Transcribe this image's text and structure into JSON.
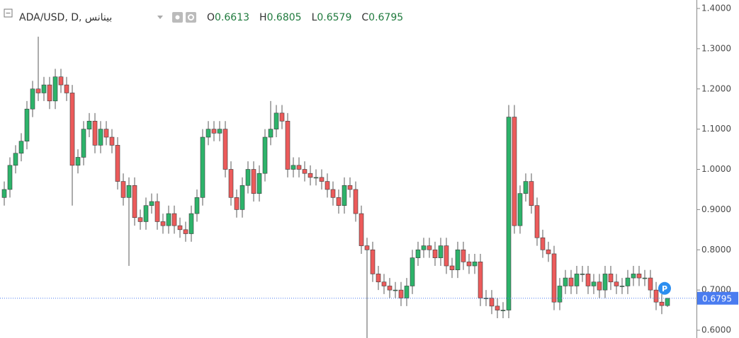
{
  "chart_data": {
    "type": "candlestick",
    "title": "ADA/USD, D, بينانس",
    "ohlc_legend": [
      {
        "label": "O",
        "value": 0.6613
      },
      {
        "label": "H",
        "value": 0.6805
      },
      {
        "label": "L",
        "value": 0.6579
      },
      {
        "label": "C",
        "value": 0.6795
      }
    ],
    "open": [
      0.93,
      0.95,
      1.01,
      1.04,
      1.07,
      1.15,
      1.2,
      1.19,
      1.21,
      1.17,
      1.23,
      1.21,
      1.19,
      1.01,
      1.03,
      1.1,
      1.12,
      1.06,
      1.1,
      1.08,
      1.06,
      0.97,
      0.93,
      0.96,
      0.88,
      0.87,
      0.91,
      0.92,
      0.87,
      0.86,
      0.89,
      0.86,
      0.85,
      0.84,
      0.89,
      0.93,
      1.08,
      1.1,
      1.09,
      1.1,
      1.0,
      0.93,
      0.9,
      0.96,
      1.0,
      0.94,
      0.99,
      1.08,
      1.1,
      1.14,
      1.12,
      1.0,
      1.01,
      1.0,
      0.99,
      0.98,
      0.98,
      0.97,
      0.95,
      0.93,
      0.91,
      0.96,
      0.95,
      0.89,
      0.81,
      0.8,
      0.74,
      0.72,
      0.71,
      0.7,
      0.7,
      0.68,
      0.71,
      0.78,
      0.8,
      0.81,
      0.8,
      0.78,
      0.81,
      0.76,
      0.75,
      0.8,
      0.77,
      0.76,
      0.77,
      0.68,
      0.68,
      0.66,
      0.65,
      0.65,
      1.13,
      0.86,
      0.94,
      0.97,
      0.91,
      0.83,
      0.8,
      0.79,
      0.67,
      0.71,
      0.73,
      0.71,
      0.74,
      0.74,
      0.71,
      0.72,
      0.7,
      0.74,
      0.72,
      0.71,
      0.71,
      0.73,
      0.74,
      0.73,
      0.73,
      0.7,
      0.67,
      0.6613
    ],
    "high": [
      0.97,
      1.03,
      1.06,
      1.09,
      1.17,
      1.22,
      1.33,
      1.23,
      1.23,
      1.25,
      1.25,
      1.23,
      1.21,
      1.05,
      1.12,
      1.14,
      1.14,
      1.12,
      1.12,
      1.1,
      1.08,
      0.99,
      0.98,
      0.98,
      0.9,
      0.93,
      0.94,
      0.94,
      0.89,
      0.91,
      0.91,
      0.88,
      0.87,
      0.91,
      0.95,
      1.1,
      1.12,
      1.12,
      1.12,
      1.12,
      1.02,
      0.95,
      0.98,
      1.02,
      1.02,
      1.01,
      1.1,
      1.17,
      1.16,
      1.16,
      1.14,
      1.03,
      1.03,
      1.02,
      1.01,
      1.0,
      1.0,
      0.99,
      0.97,
      0.95,
      0.98,
      0.98,
      0.97,
      0.91,
      0.83,
      0.82,
      0.76,
      0.74,
      0.73,
      0.72,
      0.72,
      0.73,
      0.8,
      0.82,
      0.83,
      0.83,
      0.82,
      0.83,
      0.83,
      0.78,
      0.82,
      0.82,
      0.79,
      0.79,
      0.79,
      0.7,
      0.7,
      0.68,
      0.67,
      1.16,
      1.16,
      0.96,
      0.99,
      0.99,
      0.93,
      0.85,
      0.82,
      0.81,
      0.73,
      0.75,
      0.75,
      0.76,
      0.76,
      0.76,
      0.74,
      0.74,
      0.76,
      0.76,
      0.74,
      0.73,
      0.75,
      0.76,
      0.76,
      0.75,
      0.75,
      0.72,
      0.69,
      0.6805
    ],
    "low": [
      0.91,
      0.93,
      0.99,
      1.02,
      1.05,
      1.13,
      1.17,
      1.17,
      1.15,
      1.15,
      1.19,
      1.17,
      0.91,
      0.99,
      1.01,
      1.08,
      1.04,
      1.04,
      1.06,
      1.04,
      0.95,
      0.91,
      0.76,
      0.86,
      0.85,
      0.85,
      0.89,
      0.85,
      0.84,
      0.84,
      0.84,
      0.83,
      0.82,
      0.82,
      0.87,
      0.91,
      1.06,
      1.07,
      1.07,
      0.98,
      0.91,
      0.88,
      0.88,
      0.94,
      0.92,
      0.92,
      0.97,
      1.06,
      1.08,
      1.1,
      0.98,
      0.98,
      0.98,
      0.97,
      0.96,
      0.96,
      0.95,
      0.93,
      0.91,
      0.89,
      0.89,
      0.93,
      0.87,
      0.79,
      0.58,
      0.72,
      0.7,
      0.69,
      0.68,
      0.68,
      0.66,
      0.66,
      0.69,
      0.76,
      0.78,
      0.78,
      0.76,
      0.76,
      0.74,
      0.73,
      0.73,
      0.75,
      0.74,
      0.74,
      0.66,
      0.66,
      0.64,
      0.63,
      0.63,
      0.63,
      0.84,
      0.84,
      0.92,
      0.89,
      0.81,
      0.78,
      0.77,
      0.65,
      0.65,
      0.69,
      0.69,
      0.69,
      0.72,
      0.69,
      0.69,
      0.68,
      0.68,
      0.7,
      0.69,
      0.69,
      0.69,
      0.71,
      0.71,
      0.71,
      0.68,
      0.65,
      0.64,
      0.6579
    ],
    "close": [
      0.95,
      1.01,
      1.04,
      1.07,
      1.15,
      1.2,
      1.19,
      1.21,
      1.17,
      1.23,
      1.21,
      1.19,
      1.01,
      1.03,
      1.1,
      1.12,
      1.06,
      1.1,
      1.08,
      1.06,
      0.97,
      0.93,
      0.96,
      0.88,
      0.87,
      0.91,
      0.92,
      0.87,
      0.86,
      0.89,
      0.86,
      0.85,
      0.84,
      0.89,
      0.93,
      1.08,
      1.1,
      1.09,
      1.1,
      1.0,
      0.93,
      0.9,
      0.96,
      1.0,
      0.94,
      0.99,
      1.08,
      1.1,
      1.14,
      1.12,
      1.0,
      1.01,
      1.0,
      0.99,
      0.98,
      0.98,
      0.97,
      0.95,
      0.93,
      0.91,
      0.96,
      0.95,
      0.89,
      0.81,
      0.8,
      0.74,
      0.72,
      0.71,
      0.7,
      0.7,
      0.68,
      0.71,
      0.78,
      0.8,
      0.81,
      0.8,
      0.78,
      0.81,
      0.76,
      0.75,
      0.8,
      0.77,
      0.76,
      0.77,
      0.68,
      0.68,
      0.66,
      0.65,
      0.65,
      1.13,
      0.86,
      0.94,
      0.97,
      0.91,
      0.83,
      0.8,
      0.79,
      0.67,
      0.71,
      0.73,
      0.71,
      0.74,
      0.74,
      0.71,
      0.72,
      0.7,
      0.74,
      0.72,
      0.71,
      0.71,
      0.73,
      0.74,
      0.73,
      0.73,
      0.7,
      0.67,
      0.6613,
      0.6795
    ],
    "up_color": "#2db36a",
    "down_color": "#ec5b5b",
    "wick_color": "#5a5a5a",
    "last_price": 0.6795,
    "last_price_color": "#4a7cf0",
    "marker_label": "P",
    "ylim": [
      0.5807,
      1.4211
    ],
    "yticks": [
      {
        "value": 1.4,
        "label": "1.4000"
      },
      {
        "value": 1.3,
        "label": "1.3000"
      },
      {
        "value": 1.2,
        "label": "1.2000"
      },
      {
        "value": 1.1,
        "label": "1.1000"
      },
      {
        "value": 1.0,
        "label": "1.0000"
      },
      {
        "value": 0.9,
        "label": "0.9000"
      },
      {
        "value": 0.8,
        "label": "0.8000"
      },
      {
        "value": 0.7,
        "label": "0.7000"
      },
      {
        "value": 0.6,
        "label": "0.6000"
      }
    ],
    "grid": false
  }
}
